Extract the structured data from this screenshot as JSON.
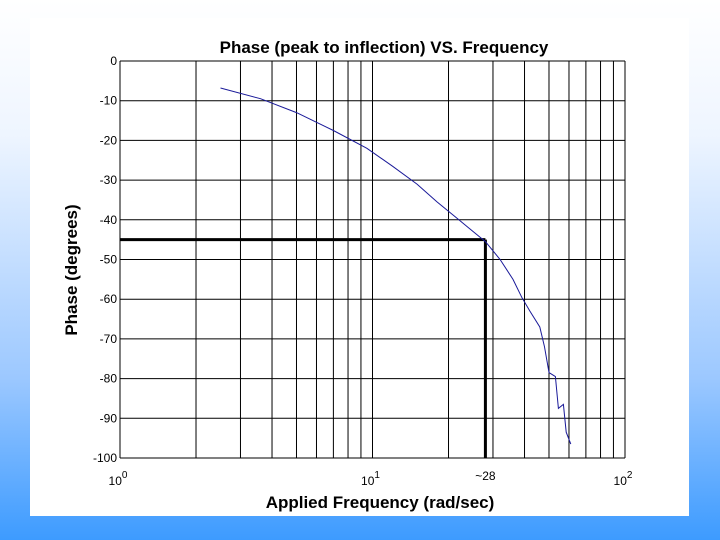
{
  "chart_data": {
    "type": "line",
    "title": "Phase (peak to inflection) VS. Frequency",
    "xlabel": "Applied Frequency (rad/sec)",
    "ylabel": "Phase (degrees)",
    "xscale": "log",
    "xlim": [
      1,
      100
    ],
    "ylim": [
      -100,
      0
    ],
    "grid": true,
    "x_ticks": [
      {
        "value": 1,
        "base": "10",
        "exp": "0"
      },
      {
        "value": 10,
        "base": "10",
        "exp": "1"
      },
      {
        "value": 100,
        "base": "10",
        "exp": "2"
      }
    ],
    "x_annotation": {
      "value": 28,
      "label": "~28"
    },
    "y_ticks": [
      0,
      -10,
      -20,
      -30,
      -40,
      -50,
      -60,
      -70,
      -80,
      -90,
      -100
    ],
    "y_tick_labels": [
      "0",
      "-10",
      "-20",
      "-30",
      "-40",
      "-50",
      "-60",
      "-70",
      "-80",
      "-90",
      "-100"
    ],
    "series": [
      {
        "color": "#1a1a99",
        "points": [
          [
            2.5,
            -6.8
          ],
          [
            3.6,
            -9.5
          ],
          [
            5,
            -13
          ],
          [
            7,
            -17.5
          ],
          [
            9.5,
            -22
          ],
          [
            12,
            -26.5
          ],
          [
            15,
            -31
          ],
          [
            18,
            -35.5
          ],
          [
            21.5,
            -39.5
          ],
          [
            24,
            -42
          ],
          [
            28,
            -45.5
          ],
          [
            32,
            -50
          ],
          [
            36,
            -55
          ],
          [
            39,
            -59.5
          ],
          [
            42,
            -63
          ],
          [
            46,
            -67
          ],
          [
            48,
            -72
          ],
          [
            50,
            -78.5
          ],
          [
            53,
            -79.5
          ],
          [
            54.5,
            -87.5
          ],
          [
            57,
            -86.5
          ],
          [
            58.5,
            -93.5
          ],
          [
            61,
            -96.5
          ]
        ]
      }
    ],
    "reference_lines": [
      {
        "from": [
          1,
          -45
        ],
        "to": [
          28,
          -45
        ],
        "color": "#000000"
      },
      {
        "from": [
          28,
          -45
        ],
        "to": [
          28,
          -100
        ],
        "color": "#000000"
      }
    ]
  }
}
